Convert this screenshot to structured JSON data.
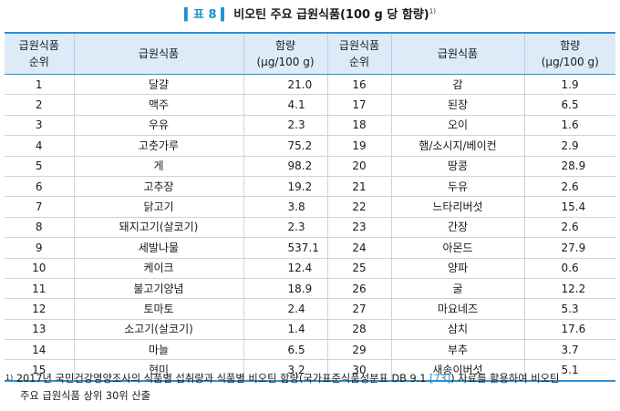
{
  "title": {
    "label": "표 8",
    "text": "비오틴 주요 급원식품(100 g 당 함량)",
    "footnote_ref": "1)"
  },
  "table": {
    "headers": {
      "rank": [
        "급원식품",
        "순위"
      ],
      "food": "급원식품",
      "amount": [
        "함량",
        "(μg/100 g)"
      ]
    },
    "rows": [
      {
        "rank1": "1",
        "food1": "달걀",
        "amount1": "21.0",
        "rank2": "16",
        "food2": "감",
        "amount2": "1.9"
      },
      {
        "rank1": "2",
        "food1": "맥주",
        "amount1": "4.1",
        "rank2": "17",
        "food2": "된장",
        "amount2": "6.5"
      },
      {
        "rank1": "3",
        "food1": "우유",
        "amount1": "2.3",
        "rank2": "18",
        "food2": "오이",
        "amount2": "1.6"
      },
      {
        "rank1": "4",
        "food1": "고춧가루",
        "amount1": "75.2",
        "rank2": "19",
        "food2": "햄/소시지/베이컨",
        "amount2": "2.9"
      },
      {
        "rank1": "5",
        "food1": "게",
        "amount1": "98.2",
        "rank2": "20",
        "food2": "땅콩",
        "amount2": "28.9"
      },
      {
        "rank1": "6",
        "food1": "고추장",
        "amount1": "19.2",
        "rank2": "21",
        "food2": "두유",
        "amount2": "2.6"
      },
      {
        "rank1": "7",
        "food1": "닭고기",
        "amount1": "3.8",
        "rank2": "22",
        "food2": "느타리버섯",
        "amount2": "15.4"
      },
      {
        "rank1": "8",
        "food1": "돼지고기(살코기)",
        "amount1": "2.3",
        "rank2": "23",
        "food2": "간장",
        "amount2": "2.6"
      },
      {
        "rank1": "9",
        "food1": "세발나물",
        "amount1": "537.1",
        "rank2": "24",
        "food2": "아몬드",
        "amount2": "27.9"
      },
      {
        "rank1": "10",
        "food1": "케이크",
        "amount1": "12.4",
        "rank2": "25",
        "food2": "양파",
        "amount2": "0.6"
      },
      {
        "rank1": "11",
        "food1": "불고기양념",
        "amount1": "18.9",
        "rank2": "26",
        "food2": "굴",
        "amount2": "12.2"
      },
      {
        "rank1": "12",
        "food1": "토마토",
        "amount1": "2.4",
        "rank2": "27",
        "food2": "마요네즈",
        "amount2": "5.3"
      },
      {
        "rank1": "13",
        "food1": "소고기(살코기)",
        "amount1": "1.4",
        "rank2": "28",
        "food2": "삼치",
        "amount2": "17.6"
      },
      {
        "rank1": "14",
        "food1": "마늘",
        "amount1": "6.5",
        "rank2": "29",
        "food2": "부추",
        "amount2": "3.7"
      },
      {
        "rank1": "15",
        "food1": "현미",
        "amount1": "3.2",
        "rank2": "30",
        "food2": "새송이버섯",
        "amount2": "5.1"
      }
    ]
  },
  "footnote": {
    "mark": "1)",
    "line1_before": "2017년 국민건강영양조사의 식품별 섭취량과 식품별 비오틴 함량(국가표준식품성분표 DB 9.1 ",
    "ref": "[73]",
    "line1_after": ") 자료를 활용하여 비오틴",
    "line2": "주요 급원식품 상위 30위 산출"
  },
  "colors": {
    "accent": "#1f8fd0",
    "header_bg": "#dcebf7",
    "border": "#2e8fd0"
  }
}
